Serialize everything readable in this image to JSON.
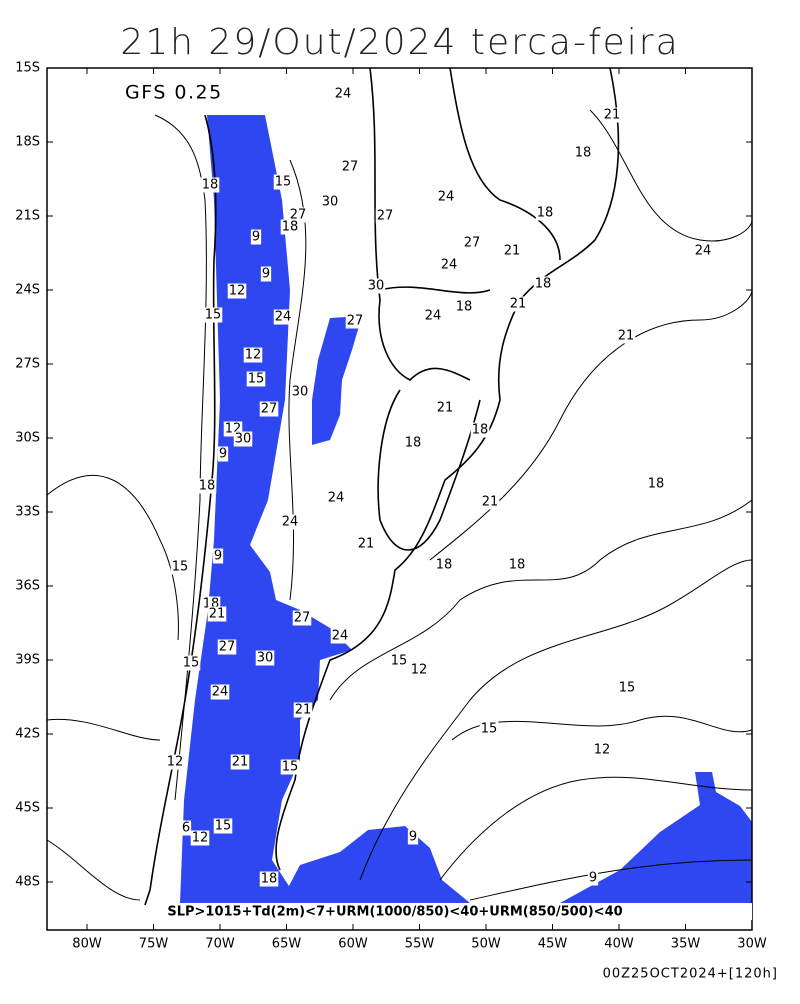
{
  "title": "21h 29/Out/2024 terca-feira",
  "model": "GFS 0.25",
  "lat_labels": [
    "15S",
    "18S",
    "21S",
    "24S",
    "27S",
    "30S",
    "33S",
    "36S",
    "39S",
    "42S",
    "45S",
    "48S"
  ],
  "lon_labels": [
    "80W",
    "75W",
    "70W",
    "65W",
    "60W",
    "55W",
    "50W",
    "45W",
    "40W",
    "35W",
    "30W"
  ],
  "contour_labels": [
    "24",
    "21",
    "18",
    "18",
    "27",
    "15",
    "30",
    "24",
    "27",
    "27",
    "18",
    "9",
    "18",
    "27",
    "21",
    "24",
    "9",
    "24",
    "18",
    "12",
    "30",
    "21",
    "18",
    "15",
    "24",
    "24",
    "27",
    "21",
    "12",
    "15",
    "30",
    "27",
    "21",
    "12",
    "30",
    "18",
    "18",
    "9",
    "18",
    "18",
    "24",
    "21",
    "24",
    "21",
    "9",
    "15",
    "18",
    "18",
    "18",
    "21",
    "27",
    "24",
    "27",
    "30",
    "15",
    "15",
    "12",
    "15",
    "24",
    "21",
    "15",
    "12",
    "21",
    "15",
    "12",
    "9",
    "6",
    "12",
    "15",
    "18",
    "9"
  ],
  "legend": "SLP>1015+Td(2m)<7+URM(1000/850)<40+URM(850/500)<40",
  "footer": "00Z25OCT2024+[120h]"
}
